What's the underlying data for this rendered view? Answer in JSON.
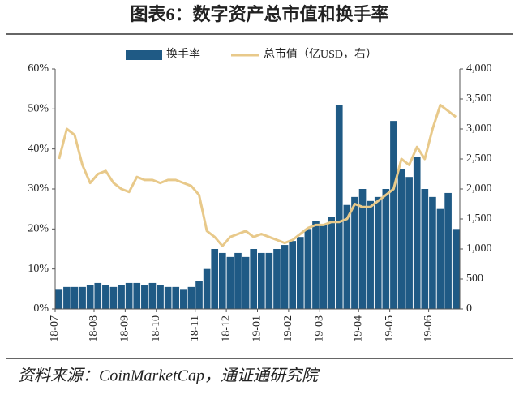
{
  "title": "图表6：数字资产总市值和换手率",
  "source": "资料来源：CoinMarketCap，通证通研究院",
  "chart_data": {
    "type": "bar-line",
    "categories": [
      "18-07",
      null,
      null,
      null,
      null,
      "18-08",
      null,
      null,
      null,
      "18-09",
      null,
      null,
      null,
      "18-10",
      null,
      null,
      null,
      null,
      "18-11",
      null,
      null,
      null,
      "18-12",
      null,
      null,
      null,
      "19-01",
      null,
      null,
      null,
      "19-02",
      null,
      null,
      null,
      "19-03",
      null,
      null,
      null,
      null,
      "19-04",
      null,
      null,
      null,
      "19-05",
      null,
      null,
      null,
      null,
      "19-06",
      null,
      null,
      null
    ],
    "series": [
      {
        "name": "换手率",
        "color": "#1f5a85",
        "kind": "bar",
        "axis": "y",
        "values": [
          5,
          5.5,
          5.5,
          5.5,
          6,
          6.5,
          6,
          5.5,
          6,
          6.5,
          6.5,
          6,
          6.5,
          6,
          5.5,
          5.5,
          5,
          5.5,
          7,
          10,
          15,
          14,
          13,
          14,
          13,
          15,
          14,
          14,
          15,
          16,
          17,
          18,
          20,
          22,
          21,
          23,
          51,
          26,
          28,
          30,
          27,
          28,
          30,
          47,
          35,
          33,
          38,
          30,
          28,
          25,
          29,
          20
        ]
      },
      {
        "name": "总市值（亿USD，右）",
        "color": "#e8c98a",
        "kind": "line",
        "axis": "y2",
        "values": [
          2500,
          3000,
          2900,
          2400,
          2100,
          2250,
          2300,
          2100,
          2000,
          1950,
          2200,
          2150,
          2150,
          2100,
          2150,
          2150,
          2100,
          2050,
          1900,
          1300,
          1200,
          1050,
          1200,
          1250,
          1300,
          1200,
          1250,
          1200,
          1150,
          1100,
          1150,
          1250,
          1350,
          1400,
          1400,
          1450,
          1450,
          1500,
          1750,
          1700,
          1700,
          1800,
          1900,
          2000,
          2500,
          2400,
          2700,
          2500,
          3000,
          3400,
          3300,
          3200
        ]
      }
    ],
    "ylim": [
      0,
      60
    ],
    "yticks": [
      {
        "value": 0,
        "label": "0%"
      },
      {
        "value": 10,
        "label": "10%"
      },
      {
        "value": 20,
        "label": "20%"
      },
      {
        "value": 30,
        "label": "30%"
      },
      {
        "value": 40,
        "label": "40%"
      },
      {
        "value": 50,
        "label": "50%"
      },
      {
        "value": 60,
        "label": "60%"
      }
    ],
    "y2lim": [
      0,
      4000
    ],
    "y2ticks": [
      0,
      500,
      {
        "value": 1000,
        "label": "1,000"
      },
      {
        "value": 1500,
        "label": "1,500"
      },
      {
        "value": 2000,
        "label": "2,000"
      },
      {
        "value": 2500,
        "label": "2,500"
      },
      {
        "value": 3000,
        "label": "3,000"
      },
      {
        "value": 3500,
        "label": "3,500"
      },
      {
        "value": 4000,
        "label": "4,000"
      }
    ]
  }
}
